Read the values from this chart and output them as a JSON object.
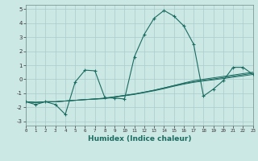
{
  "title": "",
  "xlabel": "Humidex (Indice chaleur)",
  "xlim": [
    0,
    23
  ],
  "ylim": [
    -3.3,
    5.3
  ],
  "xticks": [
    0,
    1,
    2,
    3,
    4,
    5,
    6,
    7,
    8,
    9,
    10,
    11,
    12,
    13,
    14,
    15,
    16,
    17,
    18,
    19,
    20,
    21,
    22,
    23
  ],
  "yticks": [
    -3,
    -2,
    -1,
    0,
    1,
    2,
    3,
    4,
    5
  ],
  "bg_color": "#cce8e4",
  "grid_color": "#aacccc",
  "line_color": "#1a6b60",
  "x": [
    0,
    1,
    2,
    3,
    4,
    5,
    6,
    7,
    8,
    9,
    10,
    11,
    12,
    13,
    14,
    15,
    16,
    17,
    18,
    19,
    20,
    21,
    22,
    23
  ],
  "main_y": [
    -1.6,
    -1.8,
    -1.6,
    -1.8,
    -2.5,
    -0.2,
    0.65,
    0.6,
    -1.3,
    -1.35,
    -1.4,
    1.6,
    3.2,
    4.35,
    4.9,
    4.5,
    3.8,
    2.5,
    -1.2,
    -0.7,
    -0.1,
    0.85,
    0.85,
    0.35
  ],
  "linear1": [
    -1.6,
    -1.65,
    -1.6,
    -1.6,
    -1.55,
    -1.5,
    -1.45,
    -1.4,
    -1.35,
    -1.25,
    -1.15,
    -1.05,
    -0.92,
    -0.78,
    -0.62,
    -0.45,
    -0.27,
    -0.1,
    0.0,
    0.1,
    0.2,
    0.3,
    0.4,
    0.5
  ],
  "linear2": [
    -1.6,
    -1.65,
    -1.6,
    -1.6,
    -1.55,
    -1.5,
    -1.45,
    -1.4,
    -1.35,
    -1.25,
    -1.15,
    -1.05,
    -0.92,
    -0.78,
    -0.62,
    -0.45,
    -0.3,
    -0.18,
    -0.08,
    0.02,
    0.12,
    0.22,
    0.32,
    0.42
  ],
  "linear3": [
    -1.6,
    -1.65,
    -1.6,
    -1.6,
    -1.55,
    -1.5,
    -1.45,
    -1.42,
    -1.38,
    -1.28,
    -1.18,
    -1.08,
    -0.95,
    -0.82,
    -0.67,
    -0.5,
    -0.35,
    -0.22,
    -0.12,
    -0.04,
    0.05,
    0.15,
    0.24,
    0.34
  ]
}
